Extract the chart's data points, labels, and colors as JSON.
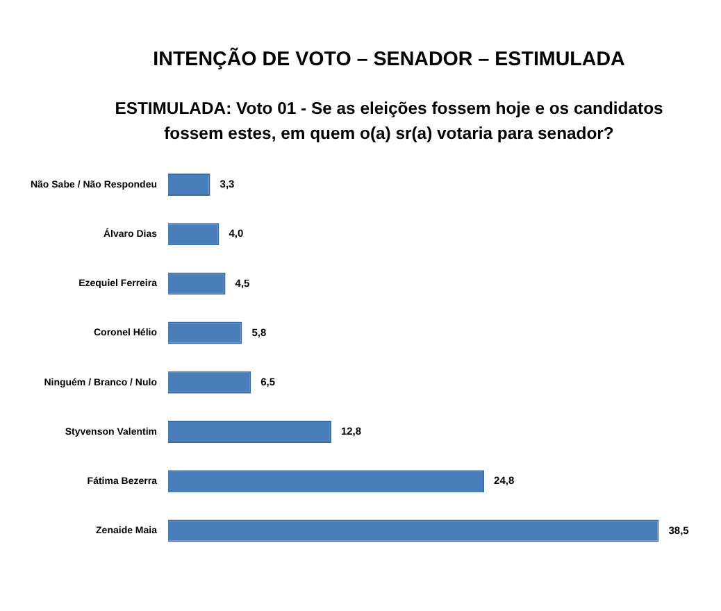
{
  "chart_data": {
    "type": "bar",
    "orientation": "horizontal",
    "title": "INTENÇÃO DE VOTO – SENADOR – ESTIMULADA",
    "subtitle": "ESTIMULADA: Voto 01 - Se as eleições fossem hoje e os candidatos fossem estes, em quem o(a) sr(a) votaria para senador?",
    "categories": [
      "Não Sabe / Não Respondeu",
      "Álvaro Dias",
      "Ezequiel Ferreira",
      "Coronel Hélio",
      "Ninguém / Branco / Nulo",
      "Styvenson Valentim",
      "Fátima Bezerra",
      "Zenaide Maia"
    ],
    "values": [
      3.3,
      4.0,
      4.5,
      5.8,
      6.5,
      12.8,
      24.8,
      38.5
    ],
    "value_labels": [
      "3,3",
      "4,0",
      "4,5",
      "5,8",
      "6,5",
      "12,8",
      "24,8",
      "38,5"
    ],
    "color": "#4a7ebb",
    "tick_labels": "y",
    "grid": false,
    "legend": false
  }
}
